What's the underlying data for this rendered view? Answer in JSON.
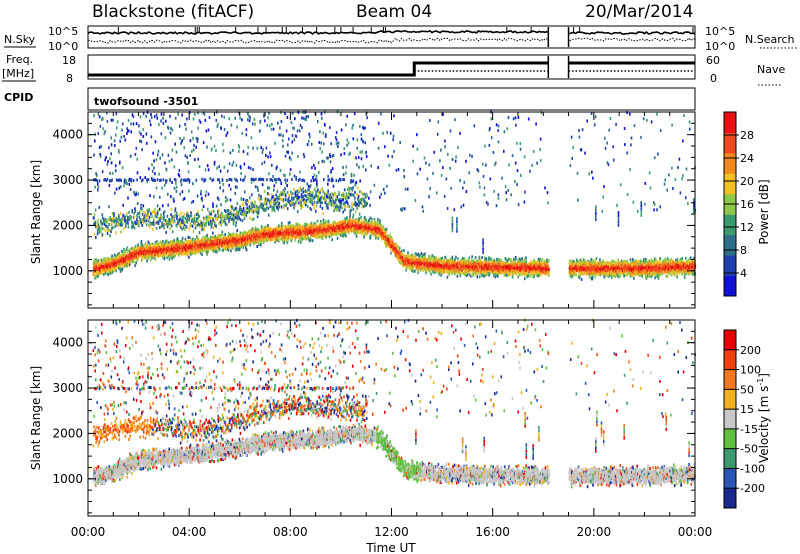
{
  "header": {
    "station": "Blackstone (fitACF)",
    "beam": "Beam 04",
    "date": "20/Mar/2014"
  },
  "top_panels": {
    "noise_left_label": "N.Sky",
    "noise_right_label": "N.Search",
    "noise_ticks": [
      "10^5",
      "10^0"
    ],
    "freq_label_line1": "Freq.",
    "freq_label_line2": "[MHz]",
    "freq_ticks": [
      "18",
      "8"
    ],
    "nave_label": "Nave",
    "nave_ticks": [
      "60",
      "0"
    ],
    "cpid_label": "CPID",
    "cpid_value": "twofsound -3501"
  },
  "chart_data": [
    {
      "type": "heatmap",
      "panel": "power",
      "xlabel": "Time UT",
      "ylabel": "Slant Range [km]",
      "colorbar_label": "Power [dB]",
      "xlim": [
        0,
        24
      ],
      "ylim": [
        180,
        4500
      ],
      "x_ticks": [
        "00:00",
        "04:00",
        "08:00",
        "12:00",
        "16:00",
        "20:00",
        "00:00"
      ],
      "y_ticks": [
        1000,
        2000,
        3000,
        4000
      ],
      "colorbar_ticks": [
        4,
        8,
        12,
        16,
        20,
        24,
        28
      ],
      "colorbar_range": [
        0,
        32
      ],
      "data_gap_hours": [
        18.2,
        19.0
      ],
      "main_echo_band_km": [
        [
          0,
          1000
        ],
        [
          1,
          1150
        ],
        [
          2,
          1400
        ],
        [
          4,
          1520
        ],
        [
          6,
          1680
        ],
        [
          7,
          1800
        ],
        [
          9,
          1880
        ],
        [
          10.5,
          2000
        ],
        [
          11.5,
          1900
        ],
        [
          12.5,
          1200
        ],
        [
          14,
          1100
        ],
        [
          16,
          1080
        ],
        [
          18,
          1050
        ],
        [
          19,
          1050
        ],
        [
          22,
          1050
        ],
        [
          24,
          1100
        ]
      ]
    },
    {
      "type": "heatmap",
      "panel": "velocity",
      "xlabel": "Time UT",
      "ylabel": "Slant Range [km]",
      "colorbar_label": "Velocity [m s^-1]",
      "xlim": [
        0,
        24
      ],
      "ylim": [
        180,
        4500
      ],
      "x_ticks": [
        "00:00",
        "04:00",
        "08:00",
        "12:00",
        "16:00",
        "20:00",
        "00:00"
      ],
      "y_ticks": [
        1000,
        2000,
        3000,
        4000
      ],
      "colorbar_ticks": [
        200,
        100,
        50,
        15,
        -15,
        -50,
        -100,
        -200
      ],
      "colorbar_range": [
        -250,
        250
      ],
      "data_gap_hours": [
        18.2,
        19.0
      ]
    }
  ],
  "colors": {
    "power": [
      "#1010d8",
      "#2040b0",
      "#2d6f8a",
      "#3a9a70",
      "#8cc84a",
      "#f2c020",
      "#f08a20",
      "#f04820",
      "#e81010"
    ],
    "velocity": [
      "#1a2a8c",
      "#2a56b8",
      "#3b9a70",
      "#62c040",
      "#c8c8c8",
      "#f0b020",
      "#f07820",
      "#f04010",
      "#e80000"
    ]
  },
  "labels": {
    "time_axis": "Time UT",
    "range_axis": "Slant Range [km]",
    "power_colorbar": "Power [dB]",
    "velocity_colorbar": "Velocity [m s"
  }
}
